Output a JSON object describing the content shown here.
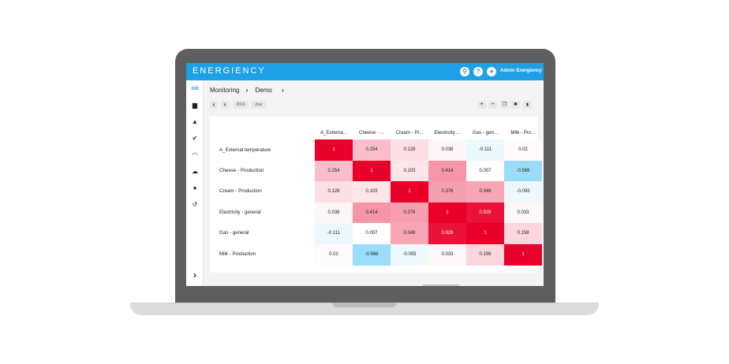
{
  "app": {
    "logo_text": "ENERGIENCY",
    "user_name": "Admin Energiency",
    "accent_color": "#1ea0e6"
  },
  "topbar_icons": [
    {
      "name": "search-icon",
      "glyph": "⚲"
    },
    {
      "name": "help-icon",
      "glyph": "?"
    },
    {
      "name": "user-icon",
      "glyph": "●"
    }
  ],
  "sidebar": {
    "items": [
      {
        "name": "sidebar-item-dashboard",
        "icon": "chart-icon",
        "glyph": "sılı",
        "active": true
      },
      {
        "name": "sidebar-item-documents",
        "icon": "document-icon",
        "glyph": "▆"
      },
      {
        "name": "sidebar-item-alerts",
        "icon": "warning-icon",
        "glyph": "▲"
      },
      {
        "name": "sidebar-item-tasks",
        "icon": "check-icon",
        "glyph": "✔"
      },
      {
        "name": "sidebar-item-gauge",
        "icon": "gauge-icon",
        "glyph": "◠"
      },
      {
        "name": "sidebar-item-upload",
        "icon": "cloud-upload-icon",
        "glyph": "☁"
      },
      {
        "name": "sidebar-item-users",
        "icon": "user-icon",
        "glyph": "●"
      },
      {
        "name": "sidebar-item-history",
        "icon": "history-icon",
        "glyph": "↺"
      }
    ],
    "expand_glyph": "›"
  },
  "breadcrumb": {
    "items": [
      "Monitoring",
      "Demo"
    ],
    "separator": "›"
  },
  "toolbar": {
    "prev_glyph": "‹",
    "next_glyph": "›",
    "year": "2016",
    "period": "Jour",
    "actions": [
      {
        "name": "add-icon",
        "glyph": "+"
      },
      {
        "name": "divide-icon",
        "glyph": "÷"
      },
      {
        "name": "copy-icon",
        "glyph": "❐"
      },
      {
        "name": "settings-icon",
        "glyph": "✱"
      },
      {
        "name": "delete-icon",
        "glyph": "▮"
      }
    ]
  },
  "chart_data": {
    "type": "heatmap",
    "columns": [
      "A_Externa...",
      "Cheese - ...",
      "Cream - Pr...",
      "Electricity ...",
      "Gas - gen...",
      "Milk - Pro..."
    ],
    "rows": [
      "A_External temperature",
      "Cheese - Production",
      "Cream - Production",
      "Electricity - general",
      "Gas - general",
      "Milk - Production"
    ],
    "values": [
      [
        "1",
        "0.254",
        "0.128",
        "0.038",
        "-0.111",
        "0.02"
      ],
      [
        "0.254",
        "1",
        "0.103",
        "0.414",
        "0.007",
        "-0.566"
      ],
      [
        "0.128",
        "0.103",
        "1",
        "0.376",
        "0.349",
        "-0.093"
      ],
      [
        "0.038",
        "0.414",
        "0.376",
        "1",
        "0.928",
        "0.033"
      ],
      [
        "-0.111",
        "0.007",
        "0.349",
        "0.928",
        "1",
        "0.158"
      ],
      [
        "0.02",
        "-0.566",
        "-0.093",
        "0.033",
        "0.158",
        "1"
      ]
    ],
    "positive_color": "#e8002a",
    "negative_color": "#4dc3f2",
    "range": [
      -1,
      1
    ]
  }
}
